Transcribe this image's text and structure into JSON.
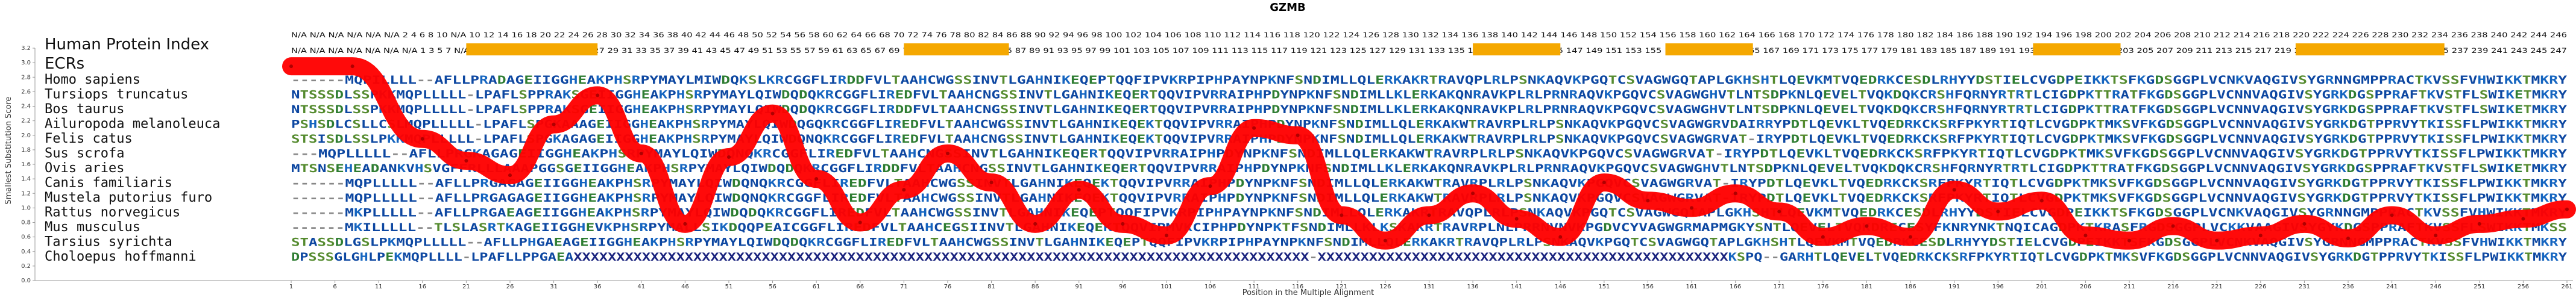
{
  "chart_data": {
    "type": "line",
    "title": "GZMB",
    "xlabel": "Position in the Multiple Alignment",
    "ylabel": "Smallest Substitution Score",
    "ylim": [
      0,
      3.2
    ],
    "yticks": [
      "0.0",
      "0.2",
      "0.4",
      "0.6",
      "0.8",
      "1.0",
      "1.2",
      "1.4",
      "1.6",
      "1.8",
      "2.0",
      "2.2",
      "2.4",
      "2.6",
      "2.8",
      "3.0",
      "3.2"
    ],
    "xlim": [
      1,
      261
    ],
    "xticks": [
      1,
      6,
      11,
      16,
      21,
      26,
      31,
      36,
      41,
      46,
      51,
      56,
      61,
      66,
      71,
      76,
      81,
      86,
      91,
      96,
      101,
      106,
      111,
      116,
      121,
      126,
      131,
      136,
      141,
      146,
      151,
      156,
      161,
      166,
      171,
      176,
      181,
      186,
      191,
      196,
      201,
      206,
      211,
      216,
      221,
      226,
      231,
      236,
      241,
      246,
      251,
      256,
      261
    ],
    "human_protein_index_label": "Human Protein Index",
    "ecrs_label": "ECRs",
    "human_index_row": "N/A N/A N/A N/A N/A N/A 2 4 6 8 10 N/A 10 12 14 16 18 20 22 24 26 28 30 32 34 36 38 40 42 44 46 48 50 52 54 56 58 60 62 64 66 68 70 72 74 76 78 80 82 84 86 88 90 92 94 96 98 100 102 104 106 108 110 112 114 116 118 120 122 124 126 128 130 132 134 136 138 140 142 144 146 148 150 152 154 156 158 160 162 164 166 168 170 172 174 176 178 180 182 184 186 188 190 192 194 196 198 200 202 204 206 208 210 212 214 216 218 220 222 224 226 228 230 232 234 236 238 240 242 244 246",
    "human_index_row2": "N/A N/A N/A N/A N/A N/A N/A 1 3 5 7 N/A 9 11 13 15 17 19 21 23 25 27 29 31 33 35 37 39 41 43 45 47 49 51 53 55 57 59 61 63 65 67 69 71 73 75 77 79 81 83 85 87 89 91 93 95 97 99 101 103 105 107 109 111 113 115 117 119 121 123 125 127 129 131 133 135 137 139 141 143 145 147 149 151 153 155 157 159 161 163 165 167 169 171 173 175 177 179 181 183 185 187 189 191 193 195 197 199 201 203 205 207 209 211 213 215 217 219 221 223 225 227 229 231 233 235 237 239 241 243 245 247",
    "ecr_color": "#f5a800",
    "ecr_regions": [
      [
        21,
        36
      ],
      [
        71,
        83
      ],
      [
        136,
        146
      ],
      [
        158,
        168
      ],
      [
        200,
        210
      ],
      [
        230,
        247
      ]
    ],
    "species": [
      {
        "name": "Homo sapiens",
        "seq": "------MQPILLLL--AFLLPRADAGEIIGGHEAKPHSRPYMAYLMIWDQKSLKRCGGFLIRDDFVLTAAHCWGSSINVTLGAHNIKEQEPTQQFIPVKRPIPHPAYNPKNFSNDIMLLQLERKAKRTRAVQPLRLPSNKAQVKPGQTCSVAGWGQTAPLGKHSHTLQEVKMTVQEDRKCESDLRHYYDSTIELCVGDPEIKKTSFKGDSGGPLVCNKVAQGIVSYGRNNGMPPRACTKVSSFVHWIKKTMKRY"
      },
      {
        "name": "Tursiops truncatus",
        "seq": "NTSSSDLSSPKKMQPLLLLL-LPAFLSPPRAKSGEIIGGHEAKPHSRPYMAYLQIWDQDQKRCGGFLIREDFVLTAAHCNGSSINVTLGAHNIKEQERTQQVIPVRRAIPHPDYNPKNFSNDIMLLKLERKAKQNRAVKPLRLPRNRAQVKPGQVCSVAGWGHVTLNTSDPKNLQEVELTVQKDQKCRSHFQRNYRTRTLCIGDPKTTRATFKGDSGGPLVCNNVAQGIVSYGRKDGSPPRAFTKVSTFLSWIKETMKRY"
      },
      {
        "name": "Bos taurus",
        "seq": "NTSSSDLSSPKKMQPLLLLL-LPAFLSPPRAKSGEIIGGHEAKPHSRPYMAYLQIWDQDQKRCGGFLIRDDFVLTAAHCNGSSINVTLGAHNIKEQERTQQVIPVRRAIPHPDYNPKNFSNDIMLLKLERKAKQNRAVKPLRLPRNRAQVKPGQVCSVAGWGHVTLNTSDPKNLQEVELTVQKDQKCRSHFQRNYRTRTLCIGDPKTTRATFKGDSGGPLVCNNVAQGIVSYGRKDGSPPRAFTKVSTFLSWIKETMKRY"
      },
      {
        "name": "Ailuropoda melanoleuca",
        "seq": "PSHSDLCSLLCSLMQPLLLLL-LPAFLSPGKAAAGEIIGGHEAKPHSRPYMAYLQIWDQGQKRCGGFLIREDFVLTAAHCWGSSINVTLGAHNIKEQEKTQQVIPVRRAIPHPDYNPKNFSNDIMLLQLERKAKWTRAVRPLRLPSNKAQVKPGQVCSVAGWGRVDAIRRYPDTLQEVKLTVQEDRKCKSRFPKYRTIQTLCVGDPKTMKSVFKGDSGGPLVCNNVAQGIVSYGRKDGTPPRVYTKISSFLPWIKKTMKRY"
      },
      {
        "name": "Felis catus",
        "seq": "STSISDLSSLPKKMQPLLLLL-LPAFLSPGKAGAGEIIGGHEAKPHSRPYMAYLQIWDQNQKRCGGFLIREDFVLTAAHCNGSSINVTLGAHNIKEQEKTQQVIPVRRAIPHPDYNPKNFSNDIMLLQLERKAKWTRAVRPLRLPSNKAQVKPGQVCSVAGWGRVAT-IRYPDTLQEVKLTVQEDRKCKSRFPKYRTIQTLCVGDPKTMKSVFKGDSGGPLVCNNVAQGIVSYGRKDGTPPRVYTKISSFLPWIKKTMKRY"
      },
      {
        "name": "Sus scrofa",
        "seq": "---MQPLLLLL--AFLLPRGKAGAGEIIGGHEAKPHSRPYMAYLQIWDQNQKRCGGFLIREDFVLTAAHCNGSSINVTLGAHNIKEQERTQQVIPVRRAIPHPDYNPKNFSNDIMLLQLERKAKWTRAVRPLRLPSNKAQVKPGQVCSVAGWGRVAT-IRYPDTLQEVKLTVQEDRKCKSRFPKYRTIQTLCVGDPKTMKSVFKGDSGGPLVCNNVAQGIVSYGRKDGTPPRVYTKISSFLPWIKKTMKRY"
      },
      {
        "name": "Ovis aries",
        "seq": "MTSNSEHEADANKVHSVGFFRLLLAAAPGGSGEIIGGHEAKPHSRPYMAYLQIWDQDQKRCGGFLIRDDFVLTAAHCNGSSINVTLGAHNIKEQERTQQVIPVRRAIPHPDYNPKNFSNDIMLLKLERKAKQNRAVKPLRLPRNRAQVKPGQVCSVAGWGHVTLNTSDPKNLQEVELTVQKDQKCRSHFQRNYRTRTLCIGDPKTTRATFKGDSGGPLVCNNVAQGIVSYGRKDGSPPRAFTKVSTFLSWIKETMKRY"
      },
      {
        "name": "Canis familiaris",
        "seq": "------MQPLLLLL--AFLLPRGAGAGEIIGGHEAKPHSRPYMAYLQIWDQNQKRCGGFLIREDFVLTAAHCWGSSINVTLGAHNIKEQEKTQQVIPVRRAIPHPDYNPKNFSNDIMLLQLERKAKWTRAVRPLRLPSNKAQVKPGQVCSVAGWGRVAT-IRYPDTLQEVKLTVQEDRKCKSRFPKYRTIQTLCVGDPKTMKSVFKGDSGGPLVCNNVAQGIVSYGRKDGTPPRVYTKISSFLPWIKKTMKRY"
      },
      {
        "name": "Mustela putorius furo",
        "seq": "------MQPLLLLL--AFLLPRGAGAGEIIGGHEAKPHSRPYMAYLQIWDQNQKRCGGFLIREDFVLTAAHCWGSSINVTLGAHNIKEQEKTQQVIPVRRAIPHPDYNPKNFSNDIMLLQLERKAKWTRAVRPLRLPSNKAQVKPGQVCSVAGWGRVAT-IRYPDTLQEVKLTVQEDRKCKSRFPKYRTIQTLCVGDPKTMKSVFKGDSGGPLVCNNVAQGIVSYGRKDGTPPRVYTKISSFLPWIKKTMKRY"
      },
      {
        "name": "Rattus norvegicus",
        "seq": "------MKPLLLLL--AFLLPRGAEAGEIIGGHEAKPHSRPYMAYLQIWDQDQKRCGGFLIREDFVLTAAHCWGSSINVTLGAHNIKEQEPTQQFIPVKRPIPHPAYNPKNFSNDIMLLQLERKAKRTRAVQPLRLPSNKAQVKPGQTCSVAGWGQTAPLGKHSHTLQEVKMTVQEDRKCESDLRHYYDSTIELCVGDPEIKKTSFKGDSGGPLVCNKVAQGIVSYGRNNGMPPRACTKVSSFVHWIKKTMKRY"
      },
      {
        "name": "Mus musculus",
        "seq": "------MKILLLLL--TLSLASRTKAGEIIGGHEVKPHSRPYMALLSIKDQQPEAICGGFLIREDFVLTAAHCEGSIINVTLGAHNIKEQEKTQQVIPMVKCIPHPDYNPKTFSNDIMLLKLKSKAKRTRAVRPLNLPRRNVNVKPGDVCYVAGWGRMAPMGKYSNTLQEVELTVQKDRECESYFKNRYNKTNQICAGDPKTKRASFRGDSGGPLVCKKVAAGIVSYGYKDGSPPRAFTKVSSFLSWIKKTMKSS"
      },
      {
        "name": "Tarsius syrichta",
        "seq": "STASSDLGSLPKMQPLLLLL--AFLLPHGAEAGEIIGGHEAKPHSRPYMAYLQIWDQDQKRCGGFLIREDFVLTAAHCWGSSINVTLGAHNIKEQEPTQQFIPVKRPIPHPAYNPKNFSNDIMLLQLERKAKRTRAVQPLRLPSNKAQVKPGQTCSVAGWGQTAPLGKHSHTLQEVKMTVQEDRKCESDLRHYYDSTIELCVGDPEIKKTSFKGDSGGPLVCNKVAQGIVSYGRNNGMPPRACTKVSSFVHWIKKTMKRY"
      },
      {
        "name": "Choloepus hoffmanni",
        "seq": "DPSSSGLGHLPEKMQPLLLL-LPAFLLPPGAEAXXXXXXXXXXXXXXXXXXXXXXXXXXXXXXXXXXXXXXXXXXXXXXXXXXXXXXXXXXXXXXXXXXXXXXXXXXXXXXXXXXXXXX-XXXXXXXXXXXXXXXXXXXXXXXXXXXXXXXXXXXXXXXXXXXXXXXXKSPQ--GARHTLQEVELTVQEDRKCKSRFPKYRTIQTLCVGDPKTMKSVFKGDSGGPLVCNNVAQGIVSYGRKDGTPPRVYTKISSFLPWIKKTMKRY"
      }
    ],
    "series": [
      {
        "x": [
          1,
          8,
          16,
          21,
          26,
          31,
          36,
          41,
          46,
          51,
          56,
          61,
          66,
          71,
          76,
          81,
          86,
          91,
          96,
          101,
          106,
          111,
          116,
          121,
          126,
          131,
          136,
          141,
          146,
          151,
          156,
          161,
          166,
          171,
          176,
          181,
          186,
          191,
          196,
          201,
          206,
          211,
          216,
          221,
          226,
          231,
          236,
          241,
          246,
          251,
          256,
          261
        ],
        "y": [
          2.95,
          2.95,
          1.95,
          1.65,
          1.45,
          2.15,
          2.55,
          1.75,
          0.78,
          1.7,
          2.3,
          1.4,
          0.8,
          1.25,
          1.75,
          1.35,
          0.78,
          1.25,
          0.78,
          0.62,
          1.3,
          2.1,
          2.0,
          0.9,
          0.55,
          0.9,
          1.2,
          0.85,
          0.6,
          1.35,
          1.1,
          1.0,
          1.2,
          0.95,
          0.6,
          0.75,
          0.6,
          1.25,
          0.95,
          1.1,
          0.62,
          0.55,
          0.75,
          0.55,
          0.62,
          0.78,
          0.58,
          0.9,
          0.62,
          0.78,
          0.85,
          0.98
        ]
      }
    ],
    "line_color": "#ff0000",
    "grid": false,
    "legend": "none"
  }
}
